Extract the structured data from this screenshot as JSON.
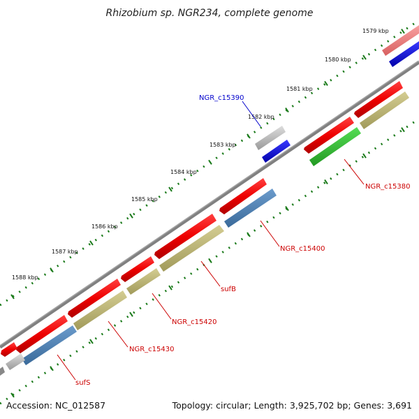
{
  "title": "Rhizobium sp. NGR234, complete genome",
  "footer": {
    "accession": "Accession: NC_012587",
    "summary": "Topology: circular; Length: 3,925,702 bp; Genes: 3,691"
  },
  "tick_labels": [
    "1579 kbp",
    "1580 kbp",
    "1581 kbp",
    "1582 kbp",
    "1583 kbp",
    "1584 kbp",
    "1585 kbp",
    "1586 kbp",
    "1587 kbp",
    "1588 kbp"
  ],
  "gene_labels": [
    {
      "text": "NGR_c15390",
      "color": "#0000cc"
    },
    {
      "text": "NGR_c15380",
      "color": "#cc0000"
    },
    {
      "text": "NGR_c15400",
      "color": "#cc0000"
    },
    {
      "text": "sufB",
      "color": "#cc0000"
    },
    {
      "text": "NGR_c15420",
      "color": "#cc0000"
    },
    {
      "text": "NGR_c15430",
      "color": "#cc0000"
    },
    {
      "text": "sufS",
      "color": "#cc0000"
    }
  ],
  "colors": {
    "backbone": "#808080",
    "gene_forward": "#e00000",
    "gene_reverse": "#e00000",
    "cds_khaki": "#b5ad6a",
    "cds_steelblue": "#4a7fb5",
    "cds_blue": "#0000dd",
    "cds_green": "#33bb33",
    "cds_pink": "#f08080",
    "cds_gray": "#b8b8b8",
    "tick_green": "#1a7a1a"
  }
}
